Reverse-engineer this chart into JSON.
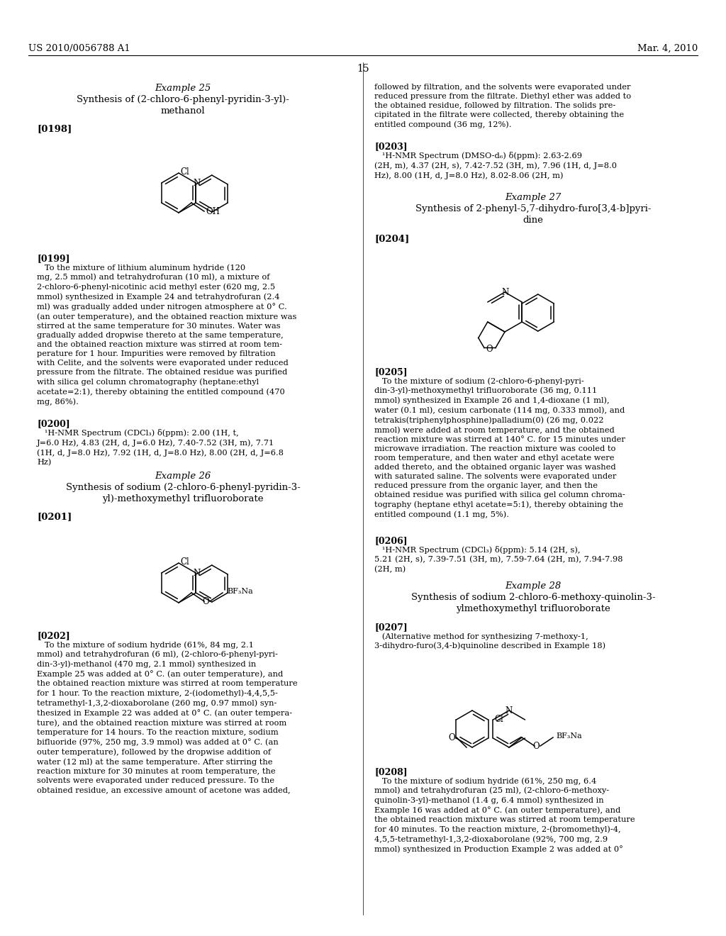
{
  "background_color": "#ffffff",
  "header_left": "US 2010/0056788 A1",
  "header_right": "Mar. 4, 2010",
  "page_number": "15"
}
